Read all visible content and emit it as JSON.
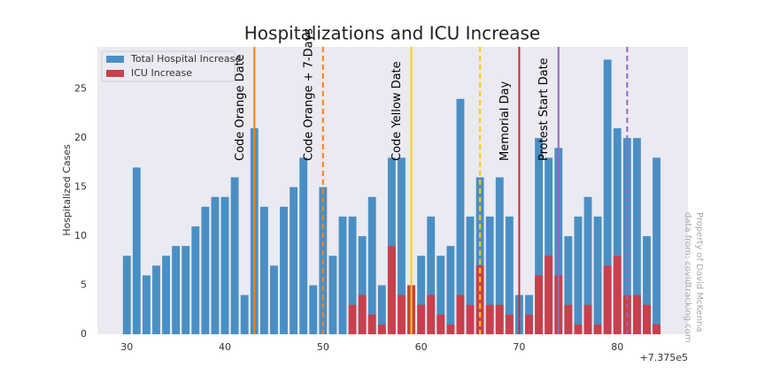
{
  "chart_data": {
    "type": "bar",
    "title": "Hospitalizations and ICU Increase",
    "ylabel": "Hospitalized Cases",
    "x_offset_label": "+7.375e5",
    "x": [
      30,
      31,
      32,
      33,
      34,
      35,
      36,
      37,
      38,
      39,
      40,
      41,
      42,
      43,
      44,
      45,
      46,
      47,
      48,
      49,
      50,
      51,
      52,
      53,
      54,
      55,
      56,
      57,
      58,
      59,
      60,
      61,
      62,
      63,
      64,
      65,
      66,
      67,
      68,
      69,
      70,
      71,
      72,
      73,
      74,
      75,
      76,
      77,
      78,
      79,
      80,
      81,
      82,
      83,
      84
    ],
    "series": [
      {
        "name": "Total Hospital Increase",
        "color": "#4a8fc4",
        "values": [
          8,
          17,
          6,
          7,
          8,
          9,
          9,
          11,
          13,
          14,
          14,
          16,
          4,
          21,
          13,
          7,
          13,
          15,
          18,
          5,
          15,
          8,
          12,
          12,
          10,
          14,
          5,
          18,
          18,
          5,
          8,
          12,
          8,
          9,
          24,
          12,
          16,
          12,
          16,
          12,
          4,
          4,
          20,
          18,
          19,
          10,
          12,
          14,
          12,
          28,
          21,
          20,
          20,
          10,
          18
        ]
      },
      {
        "name": "ICU Increase",
        "color": "#c8404c",
        "values": [
          0,
          0,
          0,
          0,
          0,
          0,
          0,
          0,
          0,
          0,
          0,
          0,
          0,
          0,
          0,
          0,
          0,
          0,
          0,
          0,
          0,
          0,
          0,
          3,
          4,
          2,
          1,
          9,
          4,
          5,
          3,
          4,
          2,
          1,
          4,
          3,
          7,
          3,
          3,
          2,
          0,
          2,
          6,
          8,
          6,
          3,
          1,
          3,
          1,
          7,
          8,
          4,
          4,
          3,
          1
        ]
      }
    ],
    "events": [
      {
        "x": 43,
        "label": "Code Orange Date",
        "color": "#ff7f0e",
        "dashed": false
      },
      {
        "x": 50,
        "label": "Code Orange + 7-Days",
        "color": "#ff7f0e",
        "dashed": true
      },
      {
        "x": 59,
        "label": "Code Yellow Date",
        "color": "#ffcc00",
        "dashed": false
      },
      {
        "x": 66,
        "color": "#ffcc00",
        "dashed": true
      },
      {
        "x": 70,
        "label": "Memorial Day",
        "color": "#d62728",
        "dashed": false
      },
      {
        "x": 74,
        "label": "Protest Start Date",
        "color": "#9467bd",
        "dashed": false
      },
      {
        "x": 81,
        "color": "#9467bd",
        "dashed": true
      }
    ],
    "xlim": [
      27,
      87.2
    ],
    "ylim": [
      0,
      29.3
    ],
    "xticks": [
      30,
      40,
      50,
      60,
      70,
      80
    ],
    "yticks": [
      0,
      5,
      10,
      15,
      20,
      25
    ],
    "grid": false,
    "legend": "upper left",
    "watermark": [
      "Property of David McKenna",
      "data from: covidtracking.com"
    ]
  }
}
